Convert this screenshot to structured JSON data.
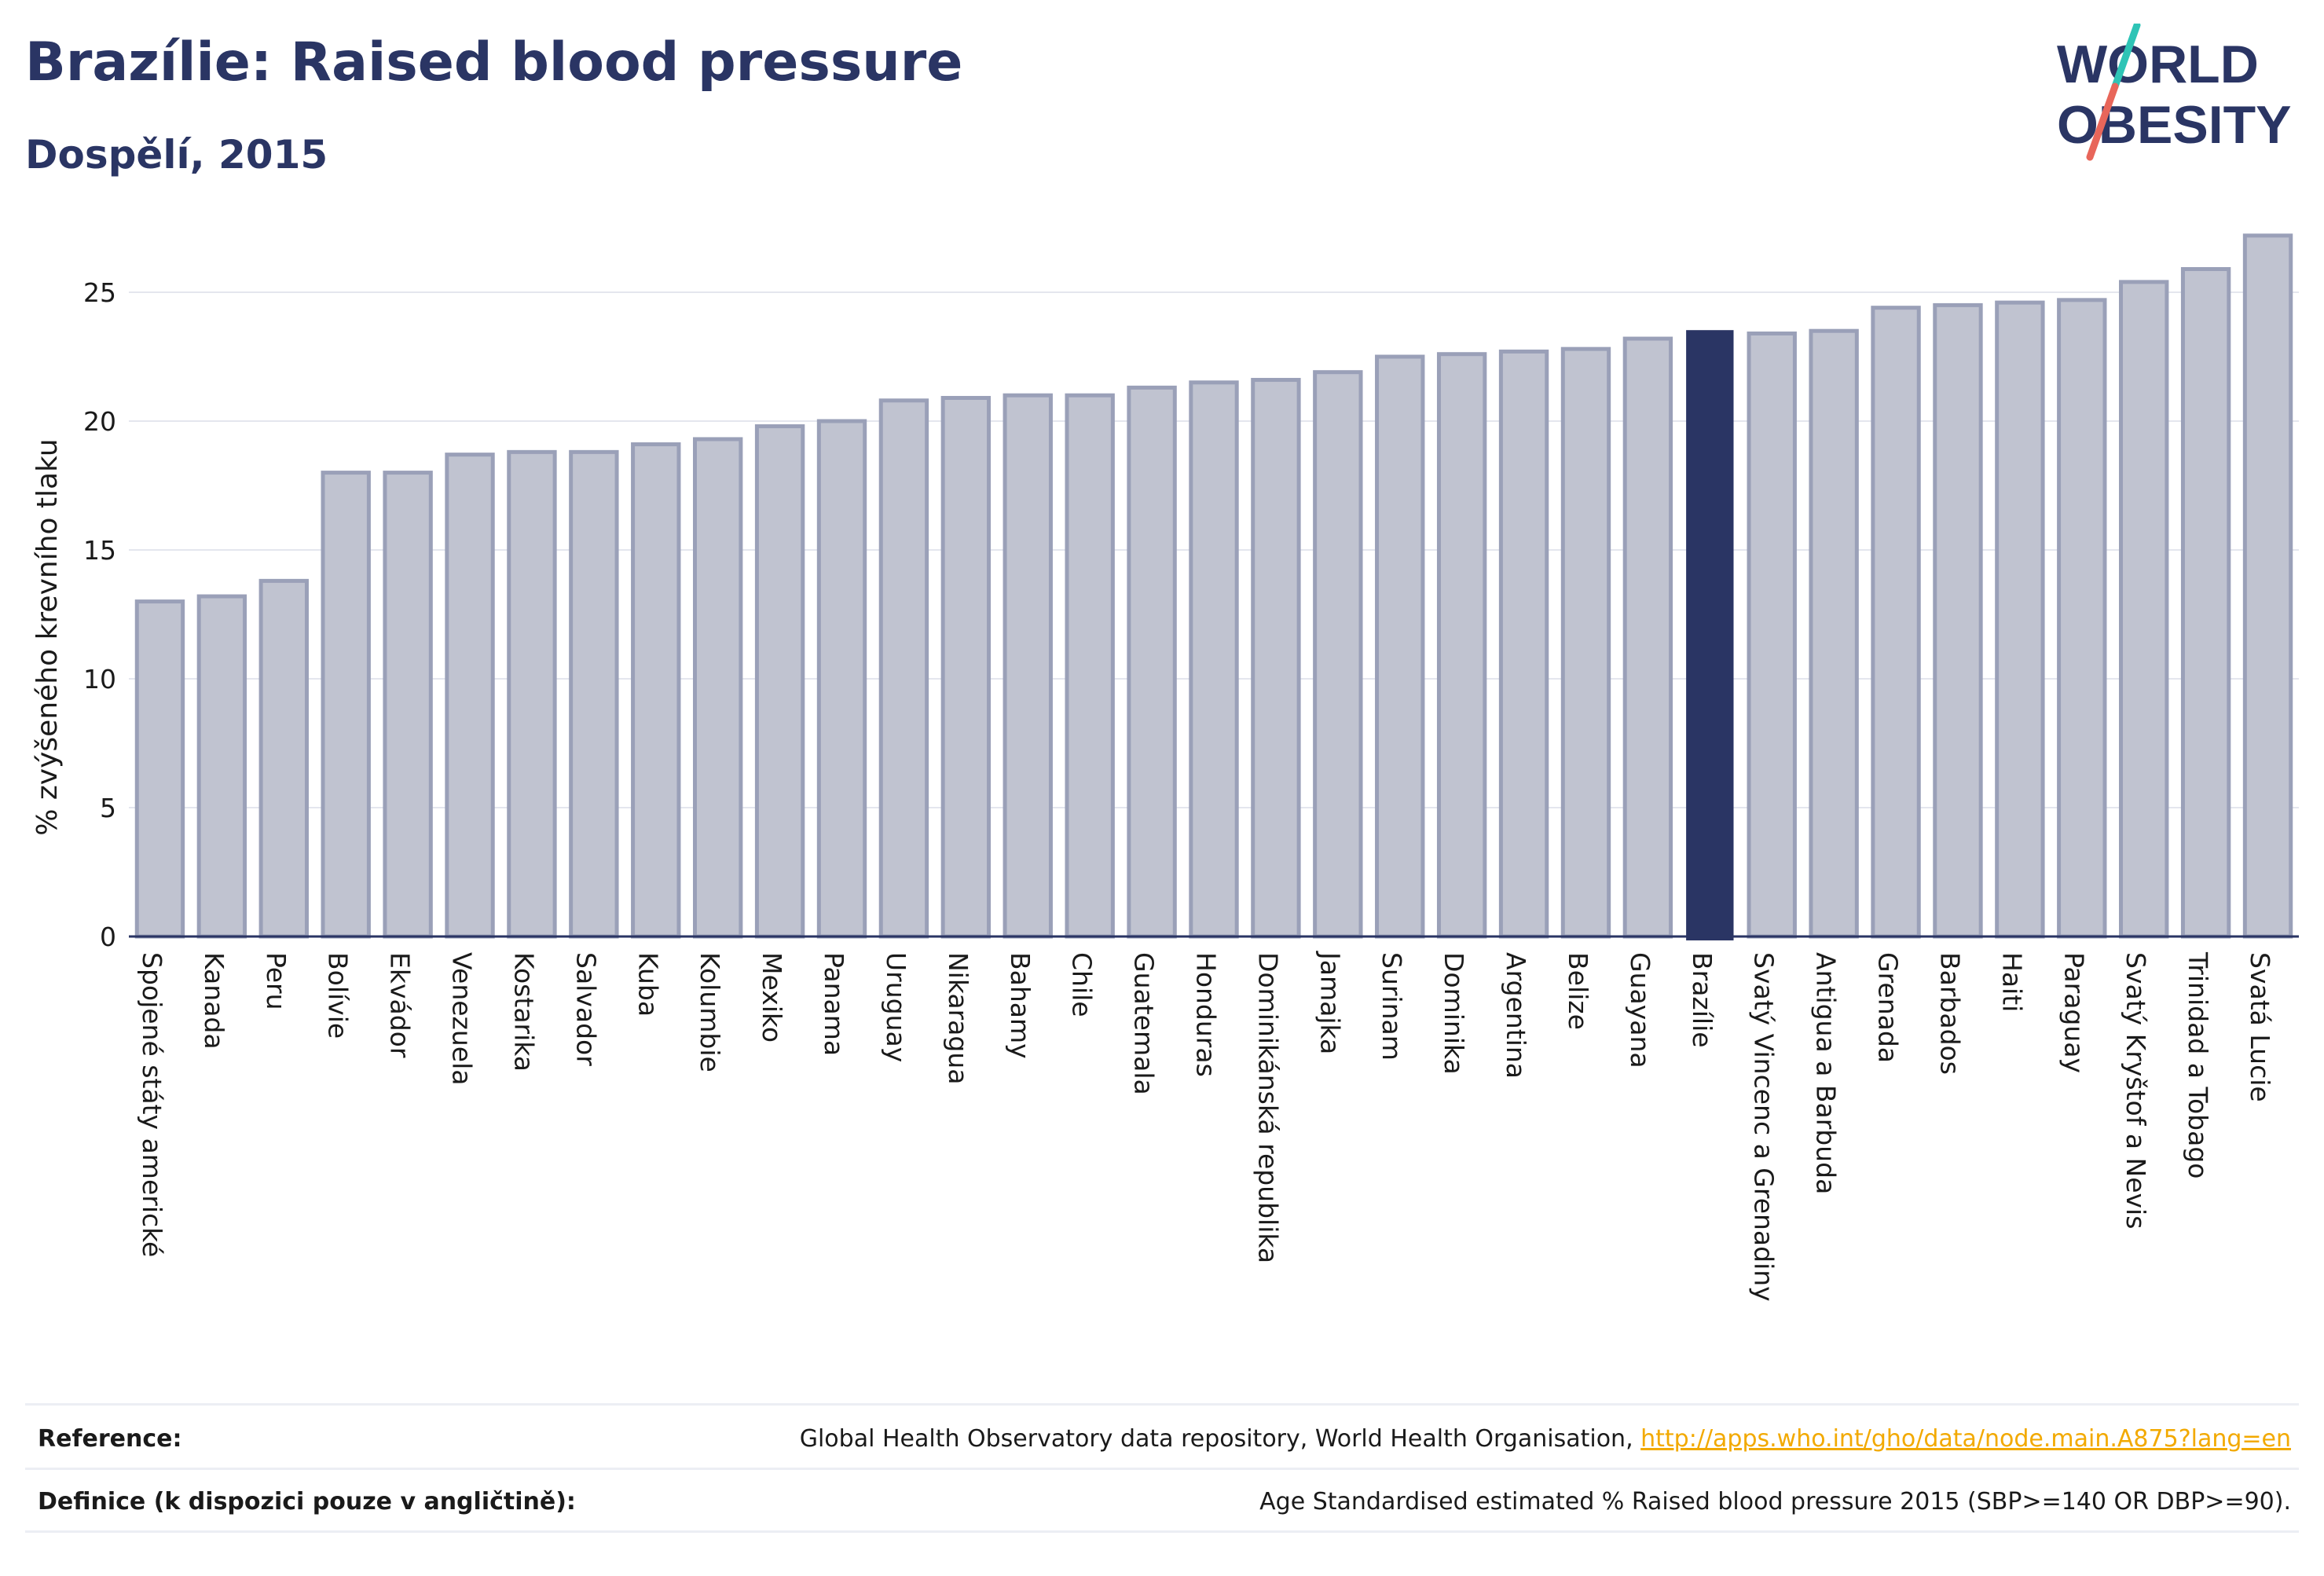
{
  "header": {
    "title": "Brazílie: Raised blood pressure",
    "subtitle": "Dospělí, 2015"
  },
  "logo": {
    "line1": "WORLD",
    "line2": "OBESITY",
    "icon": "world-obesity-logo",
    "colors": {
      "text": "#2a3564",
      "slash_teal": "#2ec4b6",
      "slash_red": "#e8665a"
    }
  },
  "colors": {
    "bar": "#c0c3d0",
    "bar_stroke": "#9aa0b8",
    "highlight": "#2a3564",
    "grid": "#e4e6ee",
    "axis": "#2a3564",
    "link": "#f2a900"
  },
  "chart_data": {
    "type": "bar",
    "title": "",
    "xlabel": "",
    "ylabel": "% zvýšeného krevního tlaku",
    "ylim": [
      0,
      27.5
    ],
    "yticks": [
      0,
      5,
      10,
      15,
      20,
      25
    ],
    "grid": true,
    "highlight_category": "Brazílie",
    "categories": [
      "Spojené státy americké",
      "Kanada",
      "Peru",
      "Bolívie",
      "Ekvádor",
      "Venezuela",
      "Kostarika",
      "Salvador",
      "Kuba",
      "Kolumbie",
      "Mexiko",
      "Panama",
      "Uruguay",
      "Nikaragua",
      "Bahamy",
      "Chile",
      "Guatemala",
      "Honduras",
      "Dominikánská republika",
      "Jamajka",
      "Surinam",
      "Dominika",
      "Argentina",
      "Belize",
      "Guayana",
      "Brazílie",
      "Svatý Vincenc a Grenadiny",
      "Antigua a Barbuda",
      "Grenada",
      "Barbados",
      "Haiti",
      "Paraguay",
      "Svatý Kryštof a Nevis",
      "Trinidad a Tobago",
      "Svatá Lucie"
    ],
    "values": [
      13.0,
      13.2,
      13.8,
      18.0,
      18.0,
      18.7,
      18.8,
      18.8,
      19.1,
      19.3,
      19.8,
      20.0,
      20.8,
      20.9,
      21.0,
      21.0,
      21.3,
      21.5,
      21.6,
      21.9,
      22.5,
      22.6,
      22.7,
      22.8,
      23.2,
      23.5,
      23.4,
      23.5,
      24.4,
      24.5,
      24.6,
      24.7,
      25.4,
      25.9,
      27.2
    ]
  },
  "footer": {
    "reference_label": "Reference:",
    "reference_text": "Global Health Observatory data repository, World Health Organisation, ",
    "reference_link": "http://apps.who.int/gho/data/node.main.A875?lang=en",
    "definition_label": "Definice (k dispozici pouze v angličtině):",
    "definition_text": "Age Standardised estimated % Raised blood pressure 2015 (SBP>=140 OR DBP>=90)."
  }
}
